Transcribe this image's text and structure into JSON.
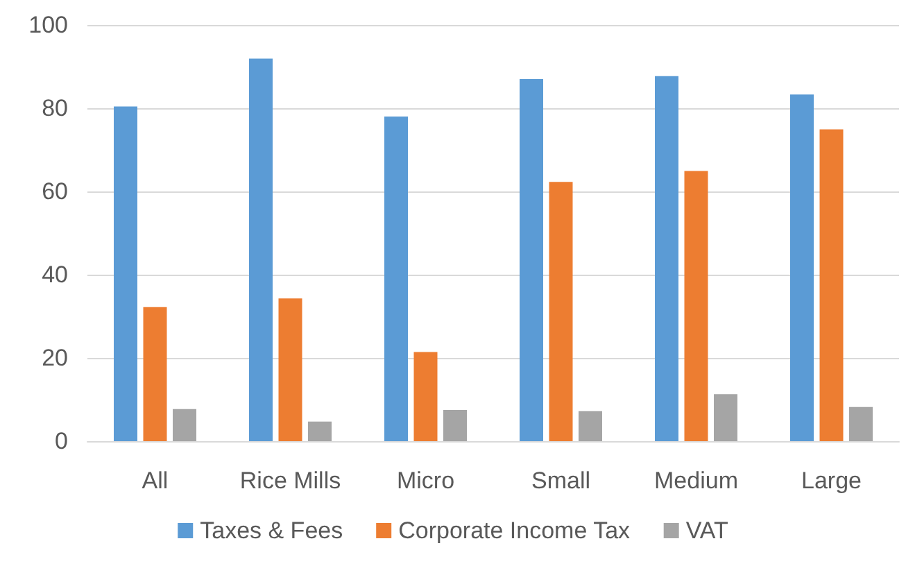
{
  "chart_data": {
    "type": "bar",
    "categories": [
      "All",
      "Rice Mills",
      "Micro",
      "Small",
      "Medium",
      "Large"
    ],
    "series": [
      {
        "name": "Taxes & Fees",
        "color": "#5b9bd5",
        "values": [
          80.4,
          91.9,
          78,
          87,
          87.7,
          83.3
        ]
      },
      {
        "name": "Corporate Income Tax",
        "color": "#ed7d31",
        "values": [
          32.2,
          34.3,
          21.4,
          62.3,
          64.9,
          74.9
        ]
      },
      {
        "name": "VAT",
        "color": "#a5a5a5",
        "values": [
          7.7,
          4.7,
          7.5,
          7.2,
          11.3,
          8.2
        ]
      }
    ],
    "ylim": [
      0,
      100
    ],
    "yticks": [
      0,
      20,
      40,
      60,
      80,
      100
    ],
    "grid": true,
    "legend": "bottom"
  }
}
